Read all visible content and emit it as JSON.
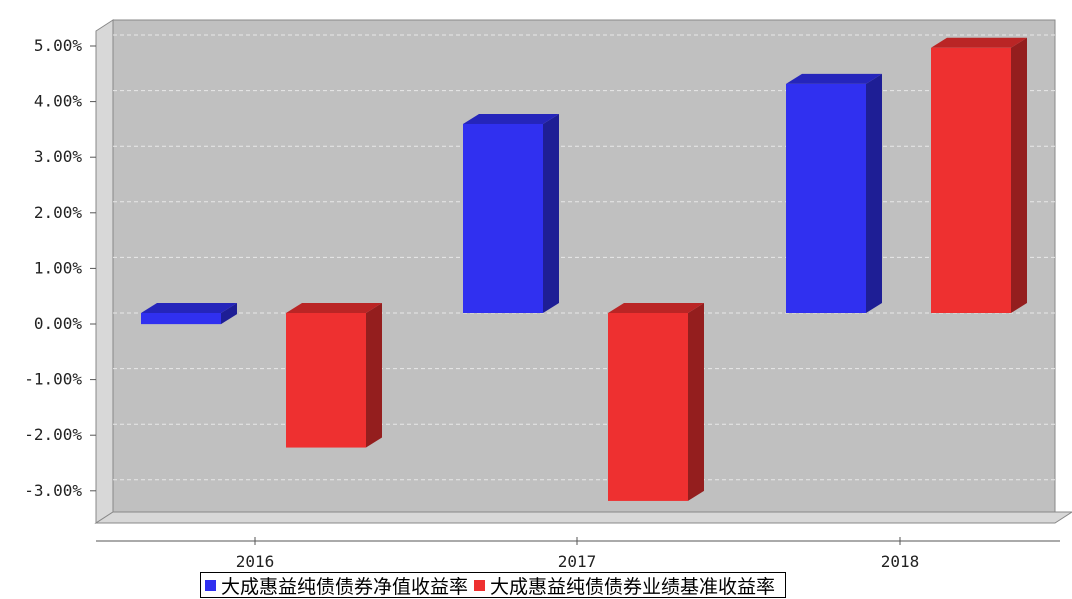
{
  "chart_data": {
    "type": "bar",
    "title": "",
    "xlabel": "",
    "ylabel": "",
    "categories": [
      "2016",
      "2017",
      "2018"
    ],
    "series": [
      {
        "name": "大成惠益纯债债券净值收益率",
        "color": "#3030f0",
        "values": [
          -0.2,
          3.4,
          4.12
        ]
      },
      {
        "name": "大成惠益纯债债券业绩基准收益率",
        "color": "#ee3030",
        "values": [
          -2.42,
          -3.38,
          4.77
        ]
      }
    ],
    "ylim": [
      -3.75,
      5.2
    ],
    "yticks": [
      "5.00%",
      "4.00%",
      "3.00%",
      "2.00%",
      "1.00%",
      "0.00%",
      "-1.00%",
      "-2.00%",
      "-3.00%"
    ],
    "ytick_values": [
      5,
      4,
      3,
      2,
      1,
      0,
      -1,
      -2,
      -3
    ],
    "grid": true,
    "legend_position": "bottom",
    "style": "3d"
  }
}
